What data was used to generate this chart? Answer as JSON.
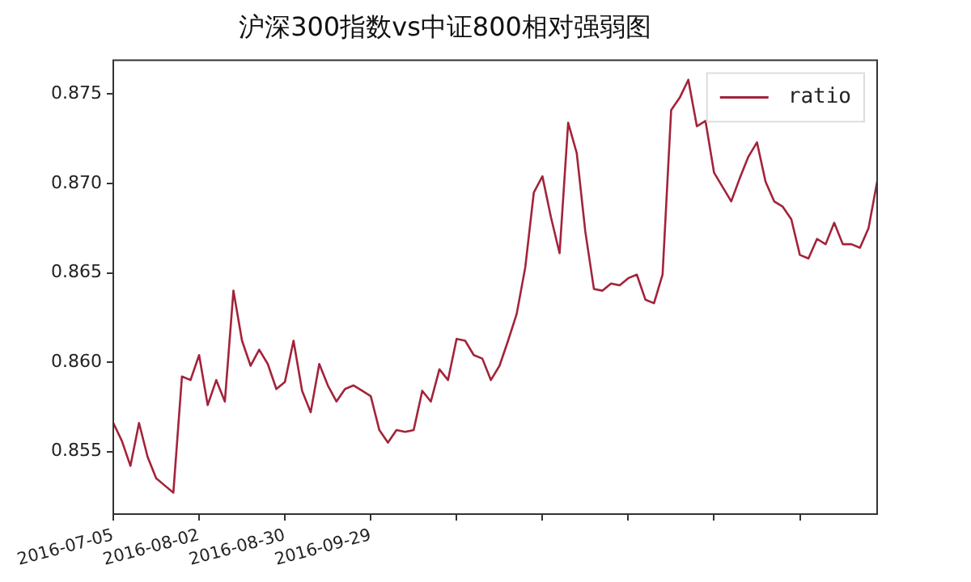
{
  "chart_data": {
    "type": "line",
    "title": "沪深300指数vs中证800相对强弱图",
    "categories": [
      "2016-07-05",
      null,
      null,
      null,
      null,
      null,
      null,
      null,
      null,
      null,
      "2016-08-02",
      null,
      null,
      null,
      null,
      null,
      null,
      null,
      null,
      null,
      "2016-08-30",
      null,
      null,
      null,
      null,
      null,
      null,
      null,
      null,
      null,
      "2016-09-29",
      null,
      null,
      null,
      null,
      null,
      null,
      null,
      null,
      null,
      null,
      null,
      null,
      null,
      null,
      null,
      null,
      null,
      null,
      null,
      null,
      null,
      null,
      null,
      null,
      null,
      null,
      null,
      null,
      null,
      null,
      null,
      null,
      null,
      null,
      null,
      null,
      null,
      null,
      null,
      null,
      null,
      null,
      null,
      null,
      null,
      null,
      null,
      null,
      null,
      null,
      null,
      null,
      null,
      null,
      null,
      null,
      null,
      null,
      null
    ],
    "series": [
      {
        "name": "ratio",
        "color": "#a3233a",
        "values": [
          0.8566,
          0.8556,
          0.8542,
          0.8566,
          0.8547,
          0.8535,
          0.8531,
          0.8527,
          0.8592,
          0.859,
          0.8604,
          0.8576,
          0.859,
          0.8578,
          0.864,
          0.8612,
          0.8598,
          0.8607,
          0.8599,
          0.8585,
          0.8589,
          0.8612,
          0.8584,
          0.8572,
          0.8599,
          0.8587,
          0.8578,
          0.8585,
          0.8587,
          0.8584,
          0.8581,
          0.8562,
          0.8555,
          0.8562,
          0.8561,
          0.8562,
          0.8584,
          0.8578,
          0.8596,
          0.859,
          0.8613,
          0.8612,
          0.8604,
          0.8602,
          0.859,
          0.8598,
          0.8612,
          0.8627,
          0.8653,
          0.8695,
          0.8704,
          0.8681,
          0.8661,
          0.8734,
          0.8717,
          0.8673,
          0.8641,
          0.864,
          0.8644,
          0.8643,
          0.8647,
          0.8649,
          0.8635,
          0.8633,
          0.8649,
          0.8741,
          0.8748,
          0.8758,
          0.8732,
          0.8735,
          0.8706,
          0.8698,
          0.869,
          0.8703,
          0.8715,
          0.8723,
          0.8701,
          0.869,
          0.8687,
          0.868,
          0.866,
          0.8658,
          0.8669,
          0.8666,
          0.8678,
          0.8666,
          0.8666,
          0.8664,
          0.8675,
          0.8701
        ]
      }
    ],
    "ylim": [
      0.8515,
      0.8769
    ],
    "yticks": [
      0.855,
      {
        "value": 0.86,
        "label": "0.860"
      },
      0.865,
      {
        "value": 0.87,
        "label": "0.870"
      },
      0.875
    ],
    "legend": "top right",
    "grid": false,
    "marker": "none",
    "line_style": "solid"
  }
}
